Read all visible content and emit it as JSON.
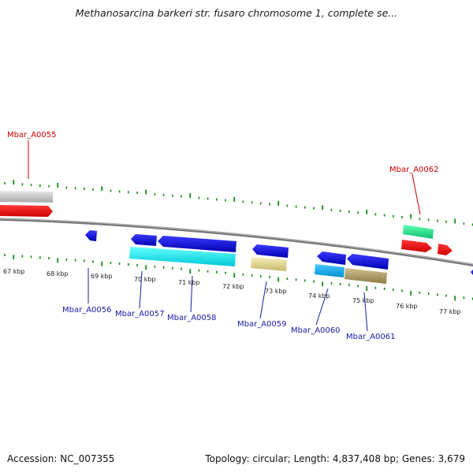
{
  "title": "Methanosarcina barkeri str. fusaro chromosome 1, complete se...",
  "footer": {
    "accession": "Accession: NC_007355",
    "summary": "Topology: circular; Length: 4,837,408 bp; Genes: 3,679"
  },
  "colors": {
    "backbone": "#808080",
    "ticks": "#1a8a1a",
    "forward_label": "#cc0000",
    "reverse_label": "#1a1aaa"
  },
  "ruler": {
    "kbp_labels": [
      "67 kbp",
      "68 kbp",
      "69 kbp",
      "70 kbp",
      "71 kbp",
      "72 kbp",
      "73 kbp",
      "74 kbp",
      "75 kbp",
      "76 kbp",
      "77 kbp"
    ]
  },
  "genes": [
    {
      "name": "Mbar_A0055",
      "strand": "forward"
    },
    {
      "name": "Mbar_A0062",
      "strand": "forward"
    },
    {
      "name": "Mbar_A0056",
      "strand": "reverse"
    },
    {
      "name": "Mbar_A0057",
      "strand": "reverse"
    },
    {
      "name": "Mbar_A0058",
      "strand": "reverse"
    },
    {
      "name": "Mbar_A0059",
      "strand": "reverse"
    },
    {
      "name": "Mbar_A0060",
      "strand": "reverse"
    },
    {
      "name": "Mbar_A0061",
      "strand": "reverse"
    }
  ]
}
